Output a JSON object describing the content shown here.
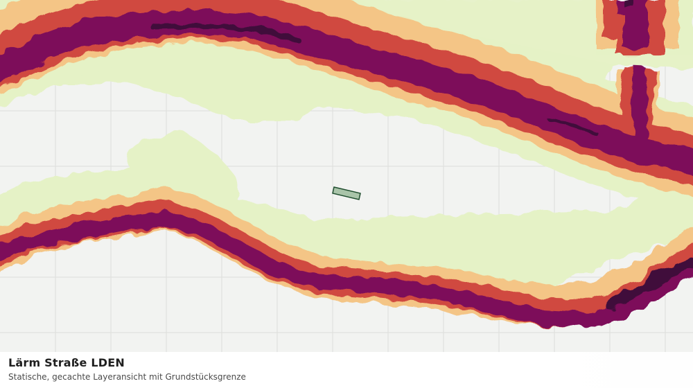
{
  "map": {
    "layer": "laerm-strasse-lden",
    "colors": {
      "background": "#f2f3f1",
      "grid": "#dcdedb",
      "band_1": "#e5f2c6",
      "band_2": "#f4c586",
      "band_3": "#d04a41",
      "band_4": "#7d0c5a",
      "band_5": "#3f0a3b",
      "parcel_fill": "#a9c4a9",
      "parcel_stroke": "#1f4d2e"
    }
  },
  "caption": {
    "title": "Lärm Straße LDEN",
    "subtitle": "Statische, gecachte Layeransicht mit Grundstücksgrenze"
  }
}
